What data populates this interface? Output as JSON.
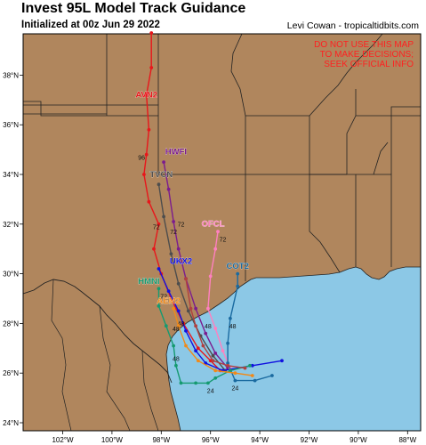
{
  "header": {
    "title": "Invest 95L Model Track Guidance",
    "subtitle": "Initialized at 00z Jun 29 2022",
    "credit": "Levi Cowan - tropicaltidbits.com"
  },
  "warning": [
    "DO NOT USE THIS MAP",
    "TO MAKE DECISIONS;",
    "SEEK OFFICIAL INFO"
  ],
  "axes": {
    "lon_labels": [
      "102°W",
      "100°W",
      "98°W",
      "96°W",
      "94°W",
      "92°W",
      "90°W",
      "88°W"
    ],
    "lon_values": [
      -102,
      -100,
      -98,
      -96,
      -94,
      -92,
      -90,
      -88
    ],
    "lat_labels": [
      "24°N",
      "26°N",
      "28°N",
      "30°N",
      "32°N",
      "34°N",
      "36°N",
      "38°N"
    ],
    "lat_values": [
      24,
      26,
      28,
      30,
      32,
      34,
      36,
      38
    ]
  },
  "colors": {
    "land": "#b0865d",
    "water": "#8cc8e6",
    "border": "#222222",
    "warning": "#ff2020"
  },
  "models": [
    {
      "name": "AVN2",
      "color": "#e8161b",
      "label_lon": -98.6,
      "label_lat": 37.1,
      "track": [
        [
          -95.6,
          26.1
        ],
        [
          -96.0,
          26.5
        ],
        [
          -96.5,
          27.0
        ],
        [
          -97.1,
          28.0
        ],
        [
          -97.6,
          29.0
        ],
        [
          -98.0,
          30.0
        ],
        [
          -98.3,
          31.0
        ],
        [
          -98.1,
          32.0
        ],
        [
          -98.5,
          32.9
        ],
        [
          -98.7,
          34.0
        ],
        [
          -98.6,
          34.8
        ],
        [
          -98.5,
          35.8
        ],
        [
          -98.6,
          37.2
        ],
        [
          -98.4,
          38.3
        ],
        [
          -98.4,
          39.7
        ]
      ],
      "hours": [
        {
          "t": "72",
          "lon": -98.2,
          "lat": 31.8
        },
        {
          "t": "96",
          "lon": -98.8,
          "lat": 34.6
        }
      ]
    },
    {
      "name": "HWFI",
      "color": "#7b1c8e",
      "label_lon": -97.4,
      "label_lat": 34.8,
      "track": [
        [
          -95.3,
          26.2
        ],
        [
          -95.8,
          26.8
        ],
        [
          -96.2,
          27.6
        ],
        [
          -96.6,
          28.6
        ],
        [
          -97.0,
          29.8
        ],
        [
          -97.3,
          31.0
        ],
        [
          -97.5,
          32.1
        ],
        [
          -97.7,
          33.4
        ],
        [
          -97.9,
          34.5
        ]
      ],
      "hours": [
        {
          "t": "72",
          "lon": -97.2,
          "lat": 31.9
        }
      ]
    },
    {
      "name": "TVCN",
      "color": "#4d4d4d",
      "label_lon": -98.0,
      "label_lat": 33.9,
      "track": [
        [
          -95.4,
          26.1
        ],
        [
          -95.9,
          26.7
        ],
        [
          -96.4,
          27.5
        ],
        [
          -96.9,
          28.5
        ],
        [
          -97.3,
          29.6
        ],
        [
          -97.6,
          30.8
        ],
        [
          -97.9,
          32.3
        ],
        [
          -98.1,
          33.6
        ]
      ],
      "hours": [
        {
          "t": "72",
          "lon": -97.5,
          "lat": 31.6
        }
      ]
    },
    {
      "name": "OFCL",
      "color": "#ff80c0",
      "label_lon": -95.9,
      "label_lat": 31.9,
      "track": [
        [
          -95.2,
          26.2
        ],
        [
          -95.5,
          26.9
        ],
        [
          -95.8,
          27.8
        ],
        [
          -96.1,
          28.6
        ],
        [
          -96.0,
          29.9
        ],
        [
          -95.8,
          31.0
        ],
        [
          -95.7,
          31.7
        ]
      ],
      "hours": [
        {
          "t": "72",
          "lon": -95.5,
          "lat": 31.3
        }
      ]
    },
    {
      "name": "UKX2",
      "color": "#1010e0",
      "label_lon": -97.2,
      "label_lat": 30.4,
      "track": [
        [
          -93.1,
          26.5
        ],
        [
          -94.3,
          26.3
        ],
        [
          -95.5,
          26.1
        ],
        [
          -96.2,
          26.4
        ],
        [
          -96.6,
          26.9
        ],
        [
          -97.0,
          27.7
        ],
        [
          -97.3,
          28.5
        ],
        [
          -97.7,
          29.3
        ],
        [
          -98.1,
          30.2
        ]
      ],
      "hours": [
        {
          "t": "48",
          "lon": -97.2,
          "lat": 27.9
        }
      ]
    },
    {
      "name": "COT2",
      "color": "#1a6aa0",
      "label_lon": -94.9,
      "label_lat": 30.2,
      "track": [
        [
          -93.5,
          25.9
        ],
        [
          -94.2,
          25.7
        ],
        [
          -95.0,
          25.7
        ],
        [
          -95.3,
          26.4
        ],
        [
          -95.3,
          27.2
        ],
        [
          -95.2,
          28.2
        ],
        [
          -94.9,
          29.5
        ],
        [
          -94.9,
          30.0
        ]
      ],
      "hours": [
        {
          "t": "24",
          "lon": -95.0,
          "lat": 25.3
        },
        {
          "t": "48",
          "lon": -95.1,
          "lat": 27.8
        }
      ]
    },
    {
      "name": "HMNI",
      "color": "#159a70",
      "label_lon": -98.5,
      "label_lat": 29.6,
      "track": [
        [
          -94.4,
          26.3
        ],
        [
          -95.2,
          26.1
        ],
        [
          -95.8,
          25.8
        ],
        [
          -96.1,
          25.6
        ],
        [
          -96.6,
          25.6
        ],
        [
          -97.2,
          25.6
        ],
        [
          -97.4,
          26.3
        ],
        [
          -97.5,
          27.1
        ],
        [
          -97.8,
          27.9
        ],
        [
          -98.1,
          28.7
        ],
        [
          -98.1,
          29.4
        ]
      ],
      "hours": [
        {
          "t": "24",
          "lon": -96.0,
          "lat": 25.2
        },
        {
          "t": "48",
          "lon": -97.4,
          "lat": 26.5
        },
        {
          "t": "72",
          "lon": -97.9,
          "lat": 29.0
        }
      ]
    },
    {
      "name": "AEM2",
      "color": "#f08a1a",
      "label_lon": -97.7,
      "label_lat": 28.8,
      "track": [
        [
          -94.3,
          25.9
        ],
        [
          -95.0,
          26.0
        ],
        [
          -95.8,
          26.1
        ],
        [
          -96.5,
          26.5
        ],
        [
          -97.0,
          27.1
        ],
        [
          -97.3,
          27.9
        ],
        [
          -97.5,
          28.6
        ]
      ],
      "hours": [
        {
          "t": "48",
          "lon": -97.4,
          "lat": 27.7
        }
      ]
    },
    {
      "name": "",
      "color": "#b04040",
      "label_lon": 0,
      "label_lat": 0,
      "track": [
        [
          -94.6,
          26.2
        ],
        [
          -95.3,
          26.3
        ],
        [
          -95.9,
          26.5
        ],
        [
          -96.3,
          27.1
        ],
        [
          -96.6,
          27.9
        ],
        [
          -96.8,
          28.6
        ],
        [
          -97.0,
          29.8
        ]
      ],
      "hours": [
        {
          "t": "48",
          "lon": -96.1,
          "lat": 27.8
        }
      ]
    }
  ]
}
